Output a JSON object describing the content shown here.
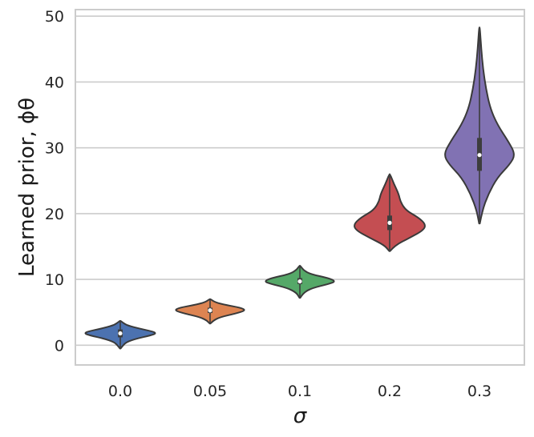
{
  "chart_data": {
    "type": "violin",
    "xlabel": "σ",
    "ylabel": "Learned prior, ϕθ",
    "categories": [
      "0.0",
      "0.05",
      "0.1",
      "0.2",
      "0.3"
    ],
    "ylim": [
      -3,
      51
    ],
    "yticks": [
      0,
      10,
      20,
      30,
      40,
      50
    ],
    "grid": "horizontal",
    "colors": [
      "#4c72b0",
      "#dd8452",
      "#55a868",
      "#c44e52",
      "#8172b3"
    ],
    "series": [
      {
        "category": "0.0",
        "min": -0.5,
        "q1": 1.2,
        "median": 1.8,
        "q3": 2.4,
        "max": 3.7,
        "density": [
          [
            -0.5,
            0.01
          ],
          [
            0.0,
            0.08
          ],
          [
            0.5,
            0.18
          ],
          [
            1.0,
            0.45
          ],
          [
            1.5,
            0.85
          ],
          [
            1.8,
            1.0
          ],
          [
            2.1,
            0.9
          ],
          [
            2.5,
            0.55
          ],
          [
            3.0,
            0.2
          ],
          [
            3.4,
            0.08
          ],
          [
            3.7,
            0.01
          ]
        ]
      },
      {
        "category": "0.05",
        "min": 3.3,
        "q1": 4.9,
        "median": 5.3,
        "q3": 5.7,
        "max": 7.0,
        "density": [
          [
            3.3,
            0.01
          ],
          [
            3.8,
            0.1
          ],
          [
            4.3,
            0.3
          ],
          [
            4.8,
            0.7
          ],
          [
            5.3,
            1.0
          ],
          [
            5.7,
            0.85
          ],
          [
            6.1,
            0.45
          ],
          [
            6.5,
            0.15
          ],
          [
            7.0,
            0.01
          ]
        ]
      },
      {
        "category": "0.1",
        "min": 7.2,
        "q1": 9.3,
        "median": 9.7,
        "q3": 10.2,
        "max": 12.1,
        "density": [
          [
            7.2,
            0.01
          ],
          [
            8.0,
            0.1
          ],
          [
            8.7,
            0.35
          ],
          [
            9.3,
            0.8
          ],
          [
            9.7,
            1.0
          ],
          [
            10.2,
            0.8
          ],
          [
            10.8,
            0.3
          ],
          [
            11.4,
            0.1
          ],
          [
            12.1,
            0.01
          ]
        ]
      },
      {
        "category": "0.2",
        "min": 14.3,
        "q1": 17.5,
        "median": 18.6,
        "q3": 19.7,
        "max": 26.0,
        "density": [
          [
            14.3,
            0.01
          ],
          [
            15.2,
            0.15
          ],
          [
            16.3,
            0.55
          ],
          [
            17.5,
            0.95
          ],
          [
            18.4,
            1.0
          ],
          [
            19.4,
            0.8
          ],
          [
            20.5,
            0.45
          ],
          [
            21.8,
            0.3
          ],
          [
            23.0,
            0.25
          ],
          [
            24.5,
            0.12
          ],
          [
            26.0,
            0.01
          ]
        ]
      },
      {
        "category": "0.3",
        "min": 18.5,
        "q1": 26.5,
        "median": 28.9,
        "q3": 31.5,
        "max": 48.3,
        "density": [
          [
            18.5,
            0.01
          ],
          [
            20.5,
            0.08
          ],
          [
            23.0,
            0.25
          ],
          [
            25.5,
            0.5
          ],
          [
            27.5,
            0.85
          ],
          [
            29.0,
            1.0
          ],
          [
            31.0,
            0.8
          ],
          [
            33.5,
            0.5
          ],
          [
            36.0,
            0.3
          ],
          [
            39.0,
            0.18
          ],
          [
            42.0,
            0.1
          ],
          [
            45.0,
            0.05
          ],
          [
            48.3,
            0.01
          ]
        ]
      }
    ]
  }
}
